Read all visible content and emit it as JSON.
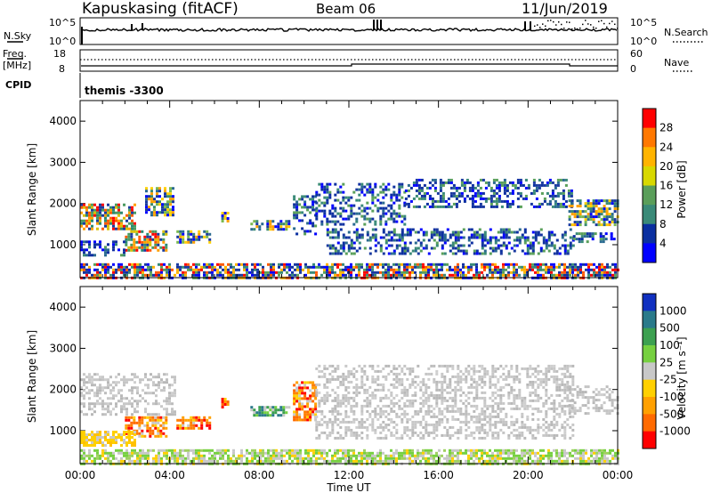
{
  "header": {
    "station": "Kapuskasing (fitACF)",
    "beam": "Beam 06",
    "date": "11/Jun/2019"
  },
  "top_panels": {
    "nsky_label": "N.Sky",
    "nsky_ticks": [
      "10^5",
      "10^0"
    ],
    "nsearch_label": "N.Search",
    "nsearch_ticks": [
      "10^5",
      "10^0"
    ],
    "freq_label_line1": "Freq.",
    "freq_label_line2": "[MHz]",
    "freq_ticks": [
      "18",
      "8"
    ],
    "nave_label": "Nave",
    "nave_ticks": [
      "60",
      "0"
    ],
    "cpid_label": "CPID",
    "cpid_value": "themis -3300"
  },
  "chart_data": [
    {
      "type": "heatmap",
      "name": "power-panel",
      "ylabel": "Slant Range [km]",
      "yticks": [
        "1000",
        "2000",
        "3000",
        "4000"
      ],
      "ylim": [
        200,
        4500
      ],
      "xlim": [
        0,
        24
      ],
      "colorbar_label": "Power [dB]",
      "colorbar_ticks": [
        "28",
        "24",
        "20",
        "16",
        "12",
        "8",
        "4"
      ],
      "colorbar_colors": [
        "#ff0000",
        "#ff7800",
        "#ffb400",
        "#d8d800",
        "#5a9e5a",
        "#3a8a78",
        "#0a2fa0",
        "#0000ff"
      ],
      "regions": [
        {
          "t0": 0.0,
          "t1": 2.4,
          "r0": 1400,
          "r1": 2000,
          "level": "high"
        },
        {
          "t0": 2.9,
          "t1": 4.2,
          "r0": 1700,
          "r1": 2400,
          "level": "mid"
        },
        {
          "t0": 2.0,
          "t1": 3.8,
          "r0": 850,
          "r1": 1350,
          "level": "high"
        },
        {
          "t0": 0.0,
          "t1": 2.0,
          "r0": 750,
          "r1": 1100,
          "level": "low"
        },
        {
          "t0": 4.3,
          "t1": 5.8,
          "r0": 1050,
          "r1": 1350,
          "level": "mid"
        },
        {
          "t0": 6.3,
          "t1": 6.6,
          "r0": 1550,
          "r1": 1800,
          "level": "mid"
        },
        {
          "t0": 7.6,
          "t1": 9.3,
          "r0": 1350,
          "r1": 1600,
          "level": "mid"
        },
        {
          "t0": 9.5,
          "t1": 10.5,
          "r0": 1250,
          "r1": 2200,
          "level": "low"
        },
        {
          "t0": 10.5,
          "t1": 14.5,
          "r0": 1500,
          "r1": 2500,
          "level": "low"
        },
        {
          "t0": 11.0,
          "t1": 22.0,
          "r0": 800,
          "r1": 1400,
          "level": "low"
        },
        {
          "t0": 14.5,
          "t1": 22.0,
          "r0": 1900,
          "r1": 2600,
          "level": "low"
        },
        {
          "t0": 21.8,
          "t1": 24.0,
          "r0": 1500,
          "r1": 2100,
          "level": "mid"
        },
        {
          "t0": 22.0,
          "t1": 24.0,
          "r0": 1050,
          "r1": 1300,
          "level": "low"
        },
        {
          "t0": 0.0,
          "t1": 24.0,
          "r0": 200,
          "r1": 550,
          "level": "mixed"
        }
      ]
    },
    {
      "type": "heatmap",
      "name": "velocity-panel",
      "ylabel": "Slant Range [km]",
      "yticks": [
        "1000",
        "2000",
        "3000",
        "4000"
      ],
      "ylim": [
        200,
        4500
      ],
      "xlim": [
        0,
        24
      ],
      "xticks": [
        "00:00",
        "04:00",
        "08:00",
        "12:00",
        "16:00",
        "20:00",
        "00:00"
      ],
      "xlabel": "Time UT",
      "colorbar_label": "Velocity [m s⁻¹]",
      "colorbar_ticks": [
        "1000",
        "500",
        "100",
        "25",
        "-25",
        "-100",
        "-500",
        "-1000"
      ],
      "colorbar_colors": [
        "#1030c0",
        "#2a7a8a",
        "#3ca050",
        "#76d040",
        "#c8c8c8",
        "#ffd000",
        "#ffa000",
        "#ff6a00",
        "#ff0000"
      ],
      "regions": [
        {
          "t0": 0.0,
          "t1": 4.2,
          "r0": 1400,
          "r1": 2400,
          "level": "gray"
        },
        {
          "t0": 2.0,
          "t1": 3.8,
          "r0": 850,
          "r1": 1350,
          "level": "neg"
        },
        {
          "t0": 0.0,
          "t1": 2.5,
          "r0": 650,
          "r1": 1000,
          "level": "neg-weak"
        },
        {
          "t0": 4.3,
          "t1": 5.8,
          "r0": 1050,
          "r1": 1350,
          "level": "neg"
        },
        {
          "t0": 6.3,
          "t1": 6.6,
          "r0": 1550,
          "r1": 1800,
          "level": "neg"
        },
        {
          "t0": 7.6,
          "t1": 9.3,
          "r0": 1350,
          "r1": 1600,
          "level": "pos"
        },
        {
          "t0": 9.5,
          "t1": 10.5,
          "r0": 1250,
          "r1": 2200,
          "level": "neg"
        },
        {
          "t0": 10.5,
          "t1": 22.0,
          "r0": 800,
          "r1": 2600,
          "level": "gray"
        },
        {
          "t0": 21.8,
          "t1": 24.0,
          "r0": 1450,
          "r1": 2100,
          "level": "gray"
        },
        {
          "t0": 0.0,
          "t1": 24.0,
          "r0": 200,
          "r1": 550,
          "level": "low-mixed"
        }
      ]
    }
  ]
}
